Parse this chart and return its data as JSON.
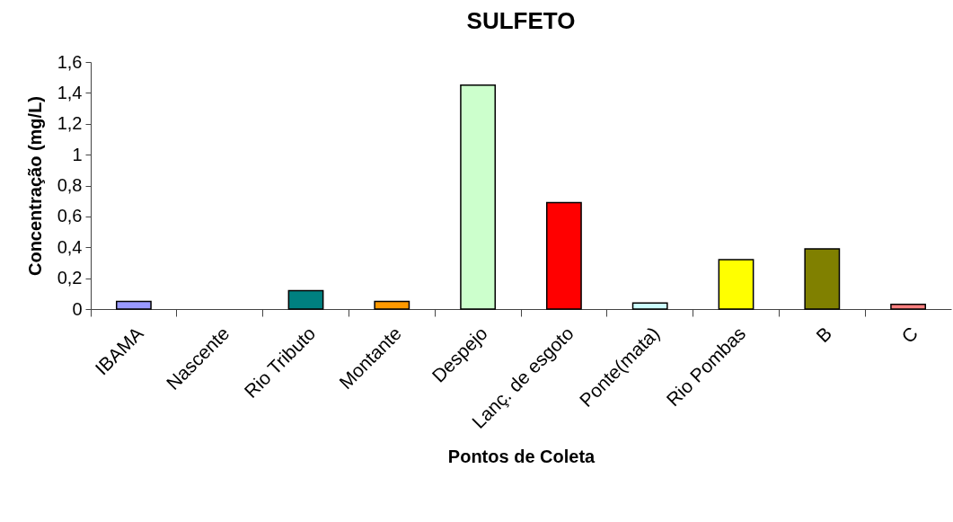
{
  "chart_data": {
    "type": "bar",
    "title": "SULFETO",
    "xlabel": "Pontos de Coleta",
    "ylabel": "Concentração (mg/L)",
    "categories": [
      "IBAMA",
      "Nascente",
      "Rio Tributo",
      "Montante",
      "Despejo",
      "Lanç. de esgoto",
      "Ponte(mata)",
      "Rio Pombas",
      "B",
      "C"
    ],
    "values": [
      0.05,
      null,
      0.12,
      0.05,
      1.45,
      0.69,
      0.04,
      0.32,
      0.39,
      0.03
    ],
    "colors": [
      "#9999ff",
      null,
      "#008080",
      "#ff9900",
      "#ccffcc",
      "#ff0000",
      "#ccffff",
      "#ffff00",
      "#808000",
      "#ff8080"
    ],
    "ylim": [
      0,
      1.6
    ],
    "yticks": [
      0,
      {
        "value": 0.2,
        "label": "0,2"
      },
      {
        "value": 0.4,
        "label": "0,4"
      },
      {
        "value": 0.6,
        "label": "0,6"
      },
      {
        "value": 0.8,
        "label": "0,8"
      },
      1,
      {
        "value": 1.2,
        "label": "1,2"
      },
      {
        "value": 1.4,
        "label": "1,4"
      },
      {
        "value": 1.6,
        "label": "1,6"
      }
    ],
    "grid": false,
    "legend": false
  }
}
